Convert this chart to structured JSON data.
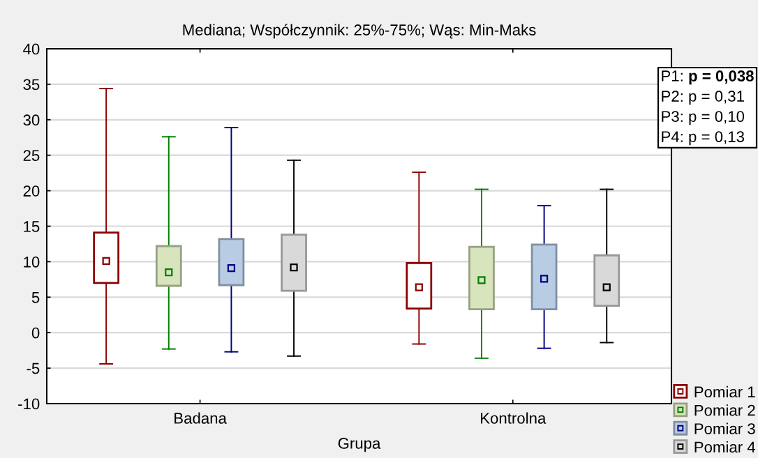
{
  "chart_data": {
    "type": "box",
    "title": "Mediana; Współczynnik: 25%-75%; Wąs: Min-Maks",
    "xlabel": "Grupa",
    "categories": [
      "Badana",
      "Kontrolna"
    ],
    "series": [
      {
        "name": "Pomiar 1",
        "color": "#8b0000",
        "colors": [
          "#ffffff",
          "#ffffff"
        ],
        "boxes": [
          {
            "low": -4.4,
            "q1": 7.0,
            "median": 10.1,
            "q3": 14.1,
            "high": 34.4
          },
          {
            "low": -1.6,
            "q1": 3.4,
            "median": 6.4,
            "q3": 9.8,
            "high": 22.6
          }
        ]
      },
      {
        "name": "Pomiar 2",
        "color": "#008000",
        "colors": [
          "#d8e4bc",
          "#d8e4bc"
        ],
        "boxes": [
          {
            "low": -2.3,
            "q1": 6.6,
            "median": 8.5,
            "q3": 12.2,
            "high": 27.6
          },
          {
            "low": -3.6,
            "q1": 3.3,
            "median": 7.4,
            "q3": 12.1,
            "high": 20.2
          }
        ]
      },
      {
        "name": "Pomiar 3",
        "color": "#000080",
        "colors": [
          "#b8cce4",
          "#b8cce4"
        ],
        "boxes": [
          {
            "low": -2.7,
            "q1": 6.7,
            "median": 9.1,
            "q3": 13.2,
            "high": 28.9
          },
          {
            "low": -2.2,
            "q1": 3.3,
            "median": 7.6,
            "q3": 12.4,
            "high": 17.9
          }
        ]
      },
      {
        "name": "Pomiar 4",
        "color": "#000000",
        "colors": [
          "#d9d9d9",
          "#d9d9d9"
        ],
        "boxes": [
          {
            "low": -3.3,
            "q1": 5.9,
            "median": 9.2,
            "q3": 13.8,
            "high": 24.3
          },
          {
            "low": -1.4,
            "q1": 3.8,
            "median": 6.4,
            "q3": 10.9,
            "high": 20.2
          }
        ]
      }
    ],
    "ylim": [
      -10,
      40
    ],
    "yticks": [
      -10,
      -5,
      0,
      5,
      10,
      15,
      20,
      25,
      30,
      35,
      40
    ],
    "grid": "y",
    "legend": "bottom right",
    "marker": "square",
    "annotations": [
      "P1: p = 0,038",
      "P2: p = 0,31",
      "P3: p = 0,10",
      "P4: p = 0,13"
    ]
  }
}
